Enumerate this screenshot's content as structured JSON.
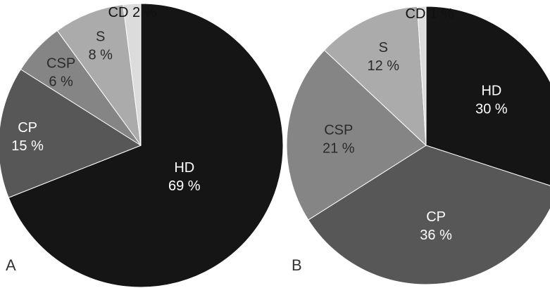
{
  "chart_data": [
    {
      "type": "pie",
      "panel_label": "A",
      "slices": [
        {
          "label": "HD",
          "value": 69,
          "display": "69 %",
          "color": "#151515",
          "text_color": "#ffffff"
        },
        {
          "label": "CP",
          "value": 15,
          "display": "15 %",
          "color": "#575757",
          "text_color": "#ffffff"
        },
        {
          "label": "CSP",
          "value": 6,
          "display": "6 %",
          "color": "#858585",
          "text_color": "#2a2a2a"
        },
        {
          "label": "S",
          "value": 8,
          "display": "8 %",
          "color": "#ababab",
          "text_color": "#2a2a2a"
        },
        {
          "label": "CD",
          "value": 2,
          "display": "2 %",
          "color": "#dcdcdc",
          "text_color": "#111111",
          "external_label": "CD 2 %"
        }
      ]
    },
    {
      "type": "pie",
      "panel_label": "B",
      "slices": [
        {
          "label": "HD",
          "value": 30,
          "display": "30 %",
          "color": "#151515",
          "text_color": "#ffffff"
        },
        {
          "label": "CP",
          "value": 36,
          "display": "36 %",
          "color": "#575757",
          "text_color": "#ffffff"
        },
        {
          "label": "CSP",
          "value": 21,
          "display": "21 %",
          "color": "#858585",
          "text_color": "#2a2a2a"
        },
        {
          "label": "S",
          "value": 12,
          "display": "12 %",
          "color": "#ababab",
          "text_color": "#2a2a2a"
        },
        {
          "label": "CD",
          "value": 1,
          "display": "1 %",
          "color": "#dcdcdc",
          "text_color": "#111111",
          "external_label": "CD 1 %"
        }
      ]
    }
  ]
}
